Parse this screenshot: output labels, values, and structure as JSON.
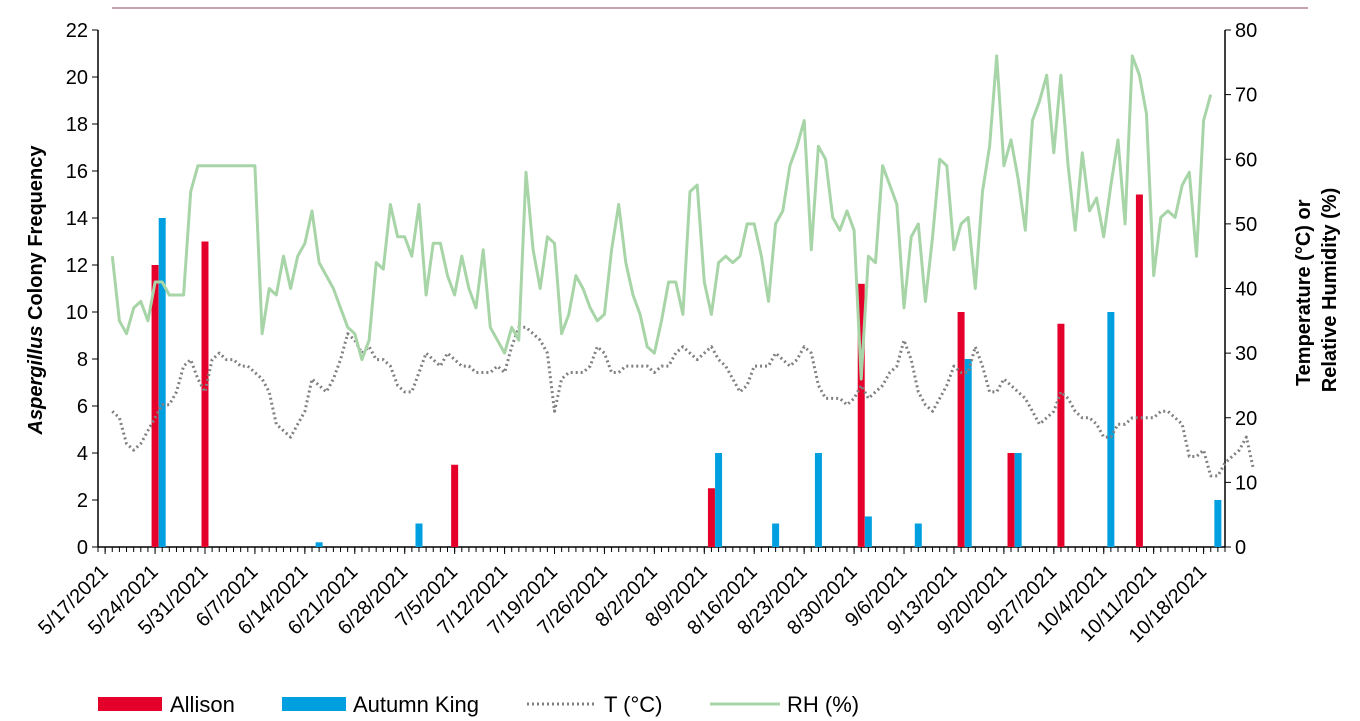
{
  "chart_data": {
    "type": "bar+line",
    "title": "",
    "ylabel_left_italic": "Aspergillus",
    "ylabel_left_rest": " Colony Frequency",
    "ylabel_right_line1": "Temperature (°C) or",
    "ylabel_right_line2": "Relative Humidity (%)",
    "ylim_left": [
      0,
      22
    ],
    "ylim_right": [
      0,
      80
    ],
    "left_ticks": [
      0,
      2,
      4,
      6,
      8,
      10,
      12,
      14,
      16,
      18,
      20,
      22
    ],
    "right_ticks": [
      0,
      10,
      20,
      30,
      40,
      50,
      60,
      70,
      80
    ],
    "x_tick_labels": [
      "5/17/2021",
      "5/24/2021",
      "5/31/2021",
      "6/7/2021",
      "6/14/2021",
      "6/21/2021",
      "6/28/2021",
      "7/5/2021",
      "7/12/2021",
      "7/19/2021",
      "7/26/2021",
      "8/2/2021",
      "8/9/2021",
      "8/16/2021",
      "8/23/2021",
      "8/30/2021",
      "9/6/2021",
      "9/13/2021",
      "9/20/2021",
      "9/27/2021",
      "10/4/2021",
      "10/11/2021",
      "10/18/2021"
    ],
    "x_start": "5/16/2021",
    "x_end": "10/21/2021",
    "legend": [
      "Allison",
      "Autumn King",
      "T (°C)",
      "RH (%)"
    ],
    "legend_position": "bottom",
    "bar_series": [
      {
        "name": "Allison",
        "color": "#e4002b",
        "points": [
          {
            "date": "5/24/2021",
            "value": 12
          },
          {
            "date": "5/31/2021",
            "value": 13
          },
          {
            "date": "7/5/2021",
            "value": 3.5
          },
          {
            "date": "8/10/2021",
            "value": 2.5
          },
          {
            "date": "8/31/2021",
            "value": 11.2
          },
          {
            "date": "9/14/2021",
            "value": 10
          },
          {
            "date": "9/21/2021",
            "value": 4
          },
          {
            "date": "9/28/2021",
            "value": 9.5
          },
          {
            "date": "10/9/2021",
            "value": 15
          }
        ]
      },
      {
        "name": "Autumn King",
        "color": "#00a0e0",
        "points": [
          {
            "date": "5/25/2021",
            "value": 14
          },
          {
            "date": "6/16/2021",
            "value": 0.2
          },
          {
            "date": "6/30/2021",
            "value": 1
          },
          {
            "date": "8/11/2021",
            "value": 4
          },
          {
            "date": "8/19/2021",
            "value": 1
          },
          {
            "date": "8/25/2021",
            "value": 4
          },
          {
            "date": "9/1/2021",
            "value": 1.3
          },
          {
            "date": "9/8/2021",
            "value": 1
          },
          {
            "date": "9/15/2021",
            "value": 8
          },
          {
            "date": "9/22/2021",
            "value": 4
          },
          {
            "date": "10/5/2021",
            "value": 10
          },
          {
            "date": "10/20/2021",
            "value": 2
          }
        ]
      }
    ],
    "line_series": [
      {
        "name": "T (°C)",
        "color": "#808080",
        "dash": "dotted",
        "start_date": "5/18/2021",
        "step_days": 1,
        "values": [
          21,
          20,
          16,
          15,
          16,
          18,
          20,
          22,
          22,
          24,
          28,
          29,
          26,
          24,
          29,
          30,
          29,
          29,
          28,
          28,
          27,
          26,
          24,
          19,
          18,
          17,
          19,
          21,
          26,
          25,
          24,
          26,
          29,
          33,
          32,
          30,
          31,
          29,
          29,
          28,
          25,
          24,
          24,
          27,
          30,
          29,
          28,
          30,
          29,
          28,
          28,
          27,
          27,
          27,
          28,
          27,
          31,
          34,
          34,
          33,
          32,
          30,
          21,
          26,
          27,
          27,
          27,
          28,
          31,
          30,
          27,
          27,
          28,
          28,
          28,
          28,
          27,
          28,
          28,
          30,
          31,
          30,
          29,
          30,
          31,
          29,
          28,
          26,
          24,
          25,
          28,
          28,
          28,
          30,
          29,
          28,
          29,
          31,
          30,
          25,
          23,
          23,
          23,
          22,
          23,
          25,
          23,
          24,
          25,
          27,
          28,
          32,
          29,
          24,
          22,
          21,
          23,
          25,
          28,
          27,
          27,
          31,
          28,
          24,
          24,
          26,
          25,
          24,
          23,
          21,
          19,
          20,
          21,
          24,
          23,
          21,
          20,
          20,
          19,
          17,
          17,
          19,
          19,
          20,
          20,
          20,
          20,
          21,
          21,
          20,
          19,
          14,
          14,
          15,
          11,
          11,
          13,
          14,
          15,
          17,
          12
        ]
      },
      {
        "name": "RH (%)",
        "color": "#a8d5a8",
        "dash": "solid",
        "start_date": "5/18/2021",
        "step_days": 1,
        "values": [
          45,
          35,
          33,
          37,
          38,
          35,
          41,
          41,
          39,
          39,
          39,
          55,
          59,
          59,
          59,
          59,
          59,
          59,
          59,
          59,
          59,
          33,
          40,
          39,
          45,
          40,
          45,
          47,
          52,
          44,
          42,
          40,
          37,
          34,
          33,
          29,
          32,
          44,
          43,
          53,
          48,
          48,
          45,
          53,
          39,
          47,
          47,
          42,
          39,
          45,
          40,
          37,
          46,
          34,
          32,
          30,
          34,
          32,
          58,
          46,
          40,
          48,
          47,
          33,
          36,
          42,
          40,
          37,
          35,
          36,
          46,
          53,
          44,
          39,
          36,
          31,
          30,
          35,
          41,
          41,
          36,
          55,
          56,
          41,
          36,
          44,
          45,
          44,
          45,
          50,
          50,
          45,
          38,
          50,
          52,
          59,
          62,
          66,
          46,
          62,
          60,
          51,
          49,
          52,
          49,
          26,
          45,
          44,
          59,
          56,
          53,
          37,
          48,
          50,
          38,
          48,
          60,
          59,
          46,
          50,
          51,
          40,
          55,
          62,
          76,
          59,
          63,
          57,
          49,
          66,
          69,
          73,
          61,
          73,
          59,
          49,
          61,
          52,
          54,
          48,
          56,
          63,
          50,
          76,
          73,
          67,
          42,
          51,
          52,
          51,
          56,
          58,
          45,
          66,
          70
        ]
      }
    ]
  }
}
